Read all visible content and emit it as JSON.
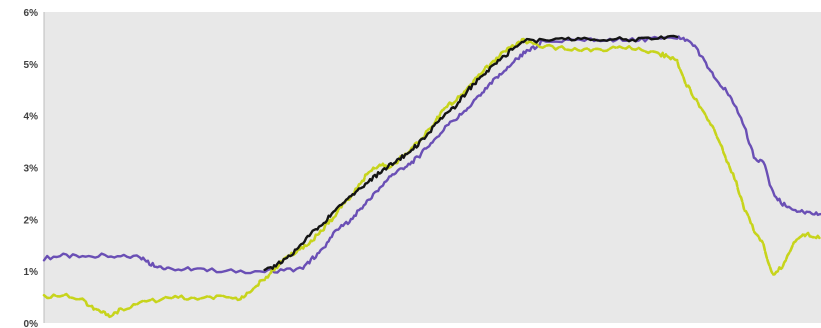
{
  "chart_data": {
    "type": "line",
    "title": "",
    "xlabel": "",
    "ylabel": "",
    "ylim": [
      0,
      6
    ],
    "y_ticks": [
      "0%",
      "1%",
      "2%",
      "3%",
      "4%",
      "5%",
      "6%"
    ],
    "x_labels": "none",
    "grid": false,
    "legend": "none",
    "background": "#e8e8e8",
    "series": [
      {
        "color": "#6a4fb5",
        "style": "solid",
        "points": [
          [
            0,
            1.25
          ],
          [
            2,
            1.3
          ],
          [
            4,
            1.27
          ],
          [
            6,
            1.3
          ],
          [
            8,
            1.28
          ],
          [
            10,
            1.28
          ],
          [
            11,
            1.15
          ],
          [
            12,
            1.1
          ],
          [
            13,
            1.05
          ],
          [
            15,
            1.05
          ],
          [
            17,
            1.02
          ],
          [
            20,
            1.0
          ],
          [
            23,
            1.0
          ],
          [
            25,
            1.02
          ],
          [
            27,
            1.05
          ],
          [
            28,
            1.25
          ],
          [
            29,
            1.4
          ],
          [
            30,
            1.7
          ],
          [
            31,
            1.85
          ],
          [
            32,
            2.0
          ],
          [
            33,
            2.2
          ],
          [
            34,
            2.4
          ],
          [
            35,
            2.6
          ],
          [
            36,
            2.8
          ],
          [
            37,
            2.95
          ],
          [
            38,
            3.05
          ],
          [
            39,
            3.2
          ],
          [
            40,
            3.4
          ],
          [
            41,
            3.6
          ],
          [
            42,
            3.8
          ],
          [
            43,
            3.95
          ],
          [
            44,
            4.1
          ],
          [
            45,
            4.3
          ],
          [
            46,
            4.5
          ],
          [
            47,
            4.7
          ],
          [
            48,
            4.85
          ],
          [
            49,
            5.05
          ],
          [
            50,
            5.2
          ],
          [
            51,
            5.3
          ],
          [
            52,
            5.45
          ],
          [
            54,
            5.45
          ],
          [
            56,
            5.47
          ],
          [
            58,
            5.45
          ],
          [
            60,
            5.48
          ],
          [
            62,
            5.47
          ],
          [
            64,
            5.48
          ],
          [
            66,
            5.5
          ],
          [
            67,
            5.45
          ],
          [
            68,
            5.3
          ],
          [
            69,
            5.0
          ],
          [
            70,
            4.7
          ],
          [
            71,
            4.5
          ],
          [
            72,
            4.2
          ],
          [
            73,
            3.8
          ],
          [
            74,
            3.2
          ],
          [
            75,
            3.1
          ],
          [
            76,
            2.5
          ],
          [
            77,
            2.3
          ],
          [
            78,
            2.2
          ],
          [
            79,
            2.15
          ],
          [
            80,
            2.1
          ],
          [
            81,
            2.1
          ]
        ]
      },
      {
        "color": "#c7d41c",
        "style": "dashed",
        "points": [
          [
            0,
            0.5
          ],
          [
            2,
            0.55
          ],
          [
            4,
            0.45
          ],
          [
            5,
            0.3
          ],
          [
            6,
            0.2
          ],
          [
            7,
            0.15
          ],
          [
            8,
            0.25
          ],
          [
            10,
            0.4
          ],
          [
            12,
            0.45
          ],
          [
            14,
            0.5
          ],
          [
            16,
            0.45
          ],
          [
            18,
            0.5
          ],
          [
            20,
            0.45
          ],
          [
            21,
            0.55
          ],
          [
            22,
            0.7
          ],
          [
            23,
            0.85
          ],
          [
            24,
            1.05
          ],
          [
            25,
            1.2
          ],
          [
            26,
            1.35
          ],
          [
            27,
            1.45
          ],
          [
            28,
            1.6
          ],
          [
            29,
            1.8
          ],
          [
            30,
            2.0
          ],
          [
            31,
            2.25
          ],
          [
            32,
            2.45
          ],
          [
            33,
            2.7
          ],
          [
            34,
            2.95
          ],
          [
            35,
            3.05
          ],
          [
            36,
            3.0
          ],
          [
            37,
            3.15
          ],
          [
            38,
            3.3
          ],
          [
            39,
            3.5
          ],
          [
            40,
            3.7
          ],
          [
            41,
            3.95
          ],
          [
            42,
            4.2
          ],
          [
            43,
            4.3
          ],
          [
            44,
            4.5
          ],
          [
            45,
            4.7
          ],
          [
            46,
            4.9
          ],
          [
            47,
            5.05
          ],
          [
            48,
            5.25
          ],
          [
            49,
            5.35
          ],
          [
            50,
            5.45
          ],
          [
            52,
            5.35
          ],
          [
            54,
            5.3
          ],
          [
            56,
            5.25
          ],
          [
            58,
            5.28
          ],
          [
            60,
            5.3
          ],
          [
            62,
            5.3
          ],
          [
            64,
            5.2
          ],
          [
            65,
            5.15
          ],
          [
            66,
            5.05
          ],
          [
            67,
            4.6
          ],
          [
            68,
            4.3
          ],
          [
            69,
            4.0
          ],
          [
            70,
            3.7
          ],
          [
            71,
            3.2
          ],
          [
            72,
            2.8
          ],
          [
            73,
            2.2
          ],
          [
            74,
            1.8
          ],
          [
            75,
            1.5
          ],
          [
            76,
            0.9
          ],
          [
            77,
            1.1
          ],
          [
            78,
            1.5
          ],
          [
            79,
            1.7
          ],
          [
            80,
            1.7
          ],
          [
            81,
            1.65
          ]
        ]
      },
      {
        "color": "#141414",
        "style": "solid",
        "points": [
          [
            23,
            1.0
          ],
          [
            24,
            1.1
          ],
          [
            25,
            1.2
          ],
          [
            26,
            1.35
          ],
          [
            27,
            1.55
          ],
          [
            28,
            1.75
          ],
          [
            29,
            1.9
          ],
          [
            30,
            2.1
          ],
          [
            31,
            2.3
          ],
          [
            32,
            2.45
          ],
          [
            33,
            2.6
          ],
          [
            34,
            2.75
          ],
          [
            35,
            2.9
          ],
          [
            36,
            3.05
          ],
          [
            37,
            3.15
          ],
          [
            38,
            3.3
          ],
          [
            39,
            3.45
          ],
          [
            40,
            3.65
          ],
          [
            41,
            3.85
          ],
          [
            42,
            4.05
          ],
          [
            43,
            4.2
          ],
          [
            44,
            4.45
          ],
          [
            45,
            4.65
          ],
          [
            46,
            4.8
          ],
          [
            47,
            5.0
          ],
          [
            48,
            5.15
          ],
          [
            49,
            5.3
          ],
          [
            50,
            5.45
          ],
          [
            52,
            5.45
          ],
          [
            54,
            5.47
          ],
          [
            56,
            5.48
          ],
          [
            58,
            5.47
          ],
          [
            60,
            5.48
          ],
          [
            62,
            5.47
          ],
          [
            64,
            5.5
          ],
          [
            66,
            5.52
          ]
        ]
      }
    ]
  }
}
